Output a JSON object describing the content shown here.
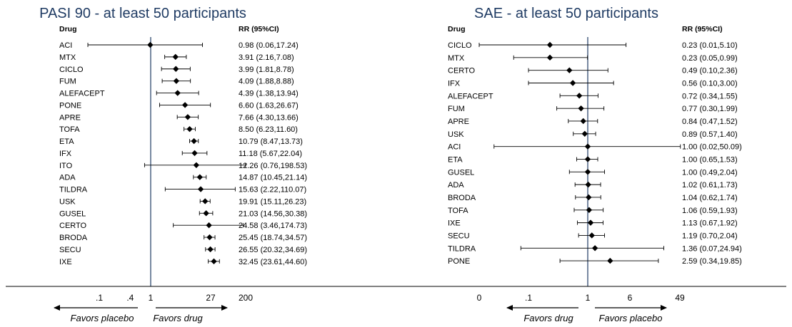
{
  "chart_data": [
    {
      "type": "forest",
      "title": "PASI 90 - at least 50 participants",
      "col_drug": "Drug",
      "col_rr": "RR (95%CI)",
      "x_scale": "log",
      "xlim": [
        0.04,
        250
      ],
      "tick_values": [
        0.1,
        0.4,
        1,
        27,
        200
      ],
      "tick_labels": [
        ".1",
        ".4",
        "1",
        "27",
        "200"
      ],
      "favors_left": "Favors placebo",
      "favors_right": "Favors drug",
      "rows": [
        {
          "drug": "ACI",
          "rr": 0.98,
          "lo": 0.06,
          "hi": 17.24,
          "label": "0.98 (0.06,17.24)"
        },
        {
          "drug": "MTX",
          "rr": 3.91,
          "lo": 2.16,
          "hi": 7.08,
          "label": "3.91 (2.16,7.08)"
        },
        {
          "drug": "CICLO",
          "rr": 3.99,
          "lo": 1.81,
          "hi": 8.78,
          "label": "3.99 (1.81,8.78)"
        },
        {
          "drug": "FUM",
          "rr": 4.09,
          "lo": 1.88,
          "hi": 8.88,
          "label": "4.09 (1.88,8.88)"
        },
        {
          "drug": "ALEFACEPT",
          "rr": 4.39,
          "lo": 1.38,
          "hi": 13.94,
          "label": "4.39 (1.38,13.94)"
        },
        {
          "drug": "PONE",
          "rr": 6.6,
          "lo": 1.63,
          "hi": 26.67,
          "label": "6.60 (1.63,26.67)"
        },
        {
          "drug": "APRE",
          "rr": 7.66,
          "lo": 4.3,
          "hi": 13.66,
          "label": "7.66 (4.30,13.66)"
        },
        {
          "drug": "TOFA",
          "rr": 8.5,
          "lo": 6.23,
          "hi": 11.6,
          "label": "8.50 (6.23,11.60)"
        },
        {
          "drug": "ETA",
          "rr": 10.79,
          "lo": 8.47,
          "hi": 13.73,
          "label": "10.79 (8.47,13.73)"
        },
        {
          "drug": "IFX",
          "rr": 11.18,
          "lo": 5.67,
          "hi": 22.04,
          "label": "11.18 (5.67,22.04)"
        },
        {
          "drug": "ITO",
          "rr": 12.26,
          "lo": 0.76,
          "hi": 198.53,
          "label": "12.26 (0.76,198.53)"
        },
        {
          "drug": "ADA",
          "rr": 14.87,
          "lo": 10.45,
          "hi": 21.14,
          "label": "14.87 (10.45,21.14)"
        },
        {
          "drug": "TILDRA",
          "rr": 15.63,
          "lo": 2.22,
          "hi": 110.07,
          "label": "15.63 (2.22,110.07)"
        },
        {
          "drug": "USK",
          "rr": 19.91,
          "lo": 15.11,
          "hi": 26.23,
          "label": "19.91 (15.11,26.23)"
        },
        {
          "drug": "GUSEL",
          "rr": 21.03,
          "lo": 14.56,
          "hi": 30.38,
          "label": "21.03 (14.56,30.38)"
        },
        {
          "drug": "CERTO",
          "rr": 24.58,
          "lo": 3.46,
          "hi": 174.73,
          "label": "24.58 (3.46,174.73)"
        },
        {
          "drug": "BRODA",
          "rr": 25.45,
          "lo": 18.74,
          "hi": 34.57,
          "label": "25.45 (18.74,34.57)"
        },
        {
          "drug": "SECU",
          "rr": 26.55,
          "lo": 20.32,
          "hi": 34.69,
          "label": "26.55 (20.32,34.69)"
        },
        {
          "drug": "IXE",
          "rr": 32.45,
          "lo": 23.61,
          "hi": 44.6,
          "label": "32.45 (23.61,44.60)"
        }
      ]
    },
    {
      "type": "forest",
      "title": "SAE - at least 50 participants",
      "col_drug": "Drug",
      "col_rr": "RR (95%CI)",
      "x_scale": "log",
      "xlim": [
        0.01,
        49
      ],
      "tick_values": [
        0.01,
        0.1,
        1,
        6,
        49
      ],
      "tick_labels": [
        "0",
        ".1",
        "1",
        "6",
        "49"
      ],
      "favors_left": "Favors drug",
      "favors_right": "Favors placebo",
      "rows": [
        {
          "drug": "CICLO",
          "rr": 0.23,
          "lo": 0.01,
          "hi": 5.1,
          "label": "0.23 (0.01,5.10)"
        },
        {
          "drug": "MTX",
          "rr": 0.23,
          "lo": 0.05,
          "hi": 0.99,
          "label": "0.23 (0.05,0.99)"
        },
        {
          "drug": "CERTO",
          "rr": 0.49,
          "lo": 0.1,
          "hi": 2.36,
          "label": "0.49 (0.10,2.36)"
        },
        {
          "drug": "IFX",
          "rr": 0.56,
          "lo": 0.1,
          "hi": 3.0,
          "label": "0.56 (0.10,3.00)"
        },
        {
          "drug": "ALEFACEPT",
          "rr": 0.72,
          "lo": 0.34,
          "hi": 1.55,
          "label": "0.72 (0.34,1.55)"
        },
        {
          "drug": "FUM",
          "rr": 0.77,
          "lo": 0.3,
          "hi": 1.99,
          "label": "0.77 (0.30,1.99)"
        },
        {
          "drug": "APRE",
          "rr": 0.84,
          "lo": 0.47,
          "hi": 1.52,
          "label": "0.84 (0.47,1.52)"
        },
        {
          "drug": "USK",
          "rr": 0.89,
          "lo": 0.57,
          "hi": 1.4,
          "label": "0.89 (0.57,1.40)"
        },
        {
          "drug": "ACI",
          "rr": 1.0,
          "lo": 0.02,
          "hi": 50.09,
          "label": "1.00 (0.02,50.09)"
        },
        {
          "drug": "ETA",
          "rr": 1.0,
          "lo": 0.65,
          "hi": 1.53,
          "label": "1.00 (0.65,1.53)"
        },
        {
          "drug": "GUSEL",
          "rr": 1.0,
          "lo": 0.49,
          "hi": 2.04,
          "label": "1.00 (0.49,2.04)"
        },
        {
          "drug": "ADA",
          "rr": 1.02,
          "lo": 0.61,
          "hi": 1.73,
          "label": "1.02 (0.61,1.73)"
        },
        {
          "drug": "BRODA",
          "rr": 1.04,
          "lo": 0.62,
          "hi": 1.74,
          "label": "1.04 (0.62,1.74)"
        },
        {
          "drug": "TOFA",
          "rr": 1.06,
          "lo": 0.59,
          "hi": 1.93,
          "label": "1.06 (0.59,1.93)"
        },
        {
          "drug": "IXE",
          "rr": 1.13,
          "lo": 0.67,
          "hi": 1.92,
          "label": "1.13 (0.67,1.92)"
        },
        {
          "drug": "SECU",
          "rr": 1.19,
          "lo": 0.7,
          "hi": 2.04,
          "label": "1.19 (0.70,2.04)"
        },
        {
          "drug": "TILDRA",
          "rr": 1.36,
          "lo": 0.07,
          "hi": 24.94,
          "label": "1.36 (0.07,24.94)"
        },
        {
          "drug": "PONE",
          "rr": 2.59,
          "lo": 0.34,
          "hi": 19.85,
          "label": "2.59 (0.34,19.85)"
        }
      ]
    }
  ]
}
